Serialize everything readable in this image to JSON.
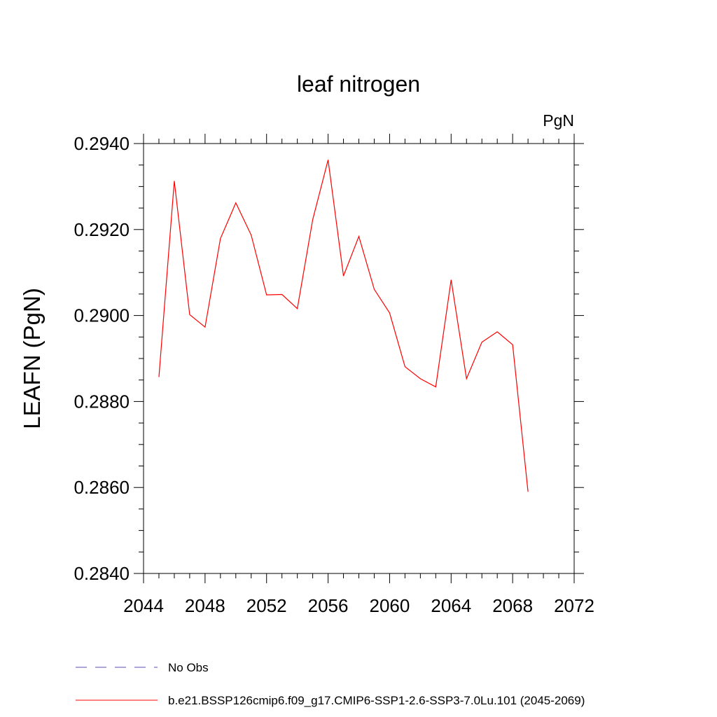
{
  "chart_data": {
    "type": "line",
    "title": "leaf nitrogen",
    "units_label": "PgN",
    "ylabel": "LEAFN  (PgN)",
    "xlabel": "",
    "xlim": [
      2044,
      2072
    ],
    "ylim": [
      0.284,
      0.294
    ],
    "x_ticks": [
      2044,
      2048,
      2052,
      2056,
      2060,
      2064,
      2068,
      2072
    ],
    "x_tick_labels": [
      "2044",
      "2048",
      "2052",
      "2056",
      "2060",
      "2064",
      "2068",
      "2072"
    ],
    "y_ticks": [
      0.284,
      0.286,
      0.288,
      0.29,
      0.292,
      0.294
    ],
    "y_tick_labels": [
      "0.2840",
      "0.2860",
      "0.2880",
      "0.2900",
      "0.2920",
      "0.2940"
    ],
    "grid": false,
    "legend_position": "bottom",
    "series": [
      {
        "name": "b.e21.BSSP126cmip6.f09_g17.CMIP6-SSP1-2.6-SSP3-7.0Lu.101 (2045-2069)",
        "color": "#ff0000",
        "style": "solid",
        "x": [
          2045,
          2046,
          2047,
          2048,
          2049,
          2050,
          2051,
          2052,
          2053,
          2054,
          2055,
          2056,
          2057,
          2058,
          2059,
          2060,
          2061,
          2062,
          2063,
          2064,
          2065,
          2066,
          2067,
          2068,
          2069
        ],
        "y": [
          0.28857,
          0.29313,
          0.29002,
          0.28973,
          0.29179,
          0.29262,
          0.29187,
          0.29048,
          0.29049,
          0.29016,
          0.29223,
          0.29362,
          0.29092,
          0.29184,
          0.29061,
          0.29006,
          0.28881,
          0.28853,
          0.28834,
          0.29083,
          0.28853,
          0.28938,
          0.28962,
          0.28932,
          0.2859
        ]
      }
    ],
    "legend": [
      {
        "label": "No Obs",
        "color": "#5a4fb0",
        "style": "dashed"
      },
      {
        "label": "b.e21.BSSP126cmip6.f09_g17.CMIP6-SSP1-2.6-SSP3-7.0Lu.101 (2045-2069)",
        "color": "#ff0000",
        "style": "solid"
      }
    ]
  }
}
